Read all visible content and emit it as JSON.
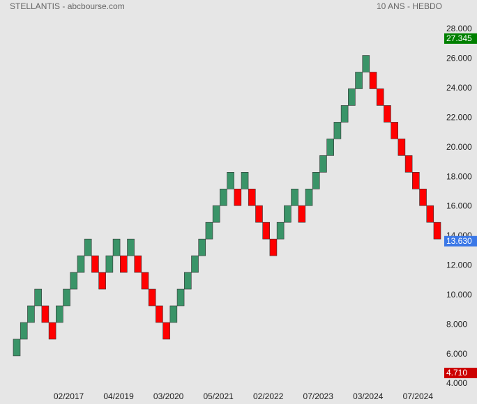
{
  "chart_data": {
    "type": "renko",
    "title": "STELLANTIS - abcbourse.com",
    "subtitle": "10 ANS - HEBDO",
    "up_color": "#3a9468",
    "down_color": "#ff0000",
    "categories": [
      null,
      null,
      null,
      null,
      null,
      null,
      null,
      "02/2017",
      null,
      null,
      null,
      null,
      null,
      null,
      "04/2019",
      null,
      null,
      null,
      null,
      null,
      null,
      "03/2020",
      null,
      null,
      null,
      null,
      null,
      null,
      "05/2021",
      null,
      null,
      null,
      null,
      null,
      null,
      "02/2022",
      null,
      null,
      null,
      null,
      null,
      null,
      "07/2023",
      null,
      null,
      null,
      null,
      null,
      null,
      "03/2024",
      null,
      null,
      null,
      null,
      null,
      null,
      "07/2024",
      null,
      null,
      null
    ],
    "open": [
      5.89,
      7.02,
      8.15,
      9.28,
      9.28,
      8.15,
      8.15,
      9.28,
      10.41,
      11.54,
      12.67,
      12.67,
      11.54,
      11.54,
      12.67,
      12.67,
      12.67,
      12.67,
      11.54,
      10.41,
      9.28,
      8.15,
      8.15,
      9.28,
      10.41,
      11.54,
      12.67,
      13.8,
      14.93,
      16.06,
      17.19,
      17.19,
      17.19,
      17.19,
      16.06,
      14.93,
      13.8,
      13.8,
      14.93,
      16.06,
      16.06,
      16.06,
      17.19,
      18.32,
      19.45,
      20.58,
      21.71,
      22.84,
      23.97,
      25.1,
      25.1,
      23.97,
      22.84,
      21.71,
      20.58,
      19.45,
      18.32,
      17.19,
      16.06,
      14.93
    ],
    "close": [
      7.02,
      8.15,
      9.28,
      10.41,
      8.15,
      7.02,
      9.28,
      10.41,
      11.54,
      12.67,
      13.8,
      11.54,
      10.41,
      12.67,
      13.8,
      11.54,
      13.8,
      11.54,
      10.41,
      9.28,
      8.15,
      7.02,
      9.28,
      10.41,
      11.54,
      12.67,
      13.8,
      14.93,
      16.06,
      17.19,
      18.32,
      16.06,
      18.32,
      16.06,
      14.93,
      13.8,
      12.67,
      14.93,
      16.06,
      17.19,
      14.93,
      17.19,
      18.32,
      19.45,
      20.58,
      21.71,
      22.84,
      23.97,
      25.1,
      26.23,
      23.97,
      22.84,
      21.71,
      20.58,
      19.45,
      18.32,
      17.19,
      16.06,
      14.93,
      13.8
    ],
    "ylim": [
      4,
      28
    ],
    "yticks": [
      {
        "value": 4,
        "label": "4.000"
      },
      {
        "value": 6,
        "label": "6.000"
      },
      {
        "value": 8,
        "label": "8.000"
      },
      {
        "value": 10,
        "label": "10.000"
      },
      {
        "value": 12,
        "label": "12.000"
      },
      {
        "value": 14,
        "label": "14.000"
      },
      {
        "value": 16,
        "label": "16.000"
      },
      {
        "value": 18,
        "label": "18.000"
      },
      {
        "value": 20,
        "label": "20.000"
      },
      {
        "value": 22,
        "label": "22.000"
      },
      {
        "value": 24,
        "label": "24.000"
      },
      {
        "value": 26,
        "label": "26.000"
      },
      {
        "value": 28,
        "label": "28.000"
      }
    ],
    "markers": [
      {
        "value": 27.345,
        "label": "27.345",
        "color": "#008000"
      },
      {
        "value": 13.63,
        "label": "13.630",
        "color": "#3b78e7"
      },
      {
        "value": 4.71,
        "label": "4.710",
        "color": "#cc0000"
      }
    ]
  }
}
